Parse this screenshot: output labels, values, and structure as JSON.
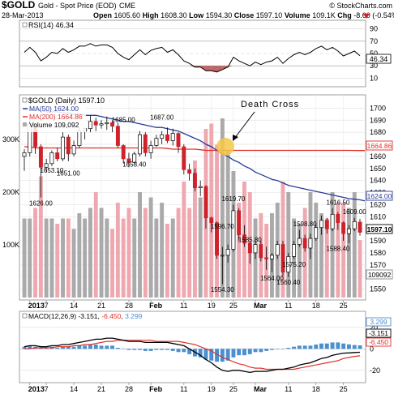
{
  "header": {
    "symbol": "$GOLD",
    "name": "Gold - Spot Price (EOD)",
    "exchange": "CME",
    "copyright": "© StockCharts.com",
    "date": "28-Mar-2013",
    "quote": {
      "open_label": "Open",
      "open": "1605.60",
      "high_label": "High",
      "high": "1608.30",
      "low_label": "Low",
      "low": "1594.30",
      "close_label": "Close",
      "close": "1597.10",
      "volume_label": "Volume",
      "volume": "109.1K",
      "chg_label": "Chg",
      "chg": "-8.60 (-0.54%)"
    }
  },
  "colors": {
    "up": "#ffffff",
    "down": "#d0202a",
    "ma50": "#2a3a9a",
    "ma200": "#e0302a",
    "volume_up": "#aaaaaa",
    "volume_down": "#f0a8b0",
    "histogram": "#4a90d0",
    "macd": "#000000",
    "signal": "#e0302a",
    "annotation": "#f5c84a"
  },
  "rsi_panel": {
    "legend": "RSI(14) 46.34",
    "value_box": "46.34",
    "levels": [
      "90",
      "70",
      "50",
      "30",
      "10"
    ]
  },
  "price_panel": {
    "legend_symbol": "$GOLD (Daily) 1597.10",
    "legend_ma50": "MA(50) 1624.00",
    "legend_ma200": "MA(200) 1664.86",
    "legend_volume": "Volume 109,092",
    "annotation_label": "Death Cross",
    "price_ticks": [
      "1700",
      "1690",
      "1680",
      "1670",
      "1660",
      "1650",
      "1640",
      "1630",
      "1620",
      "1610",
      "1600",
      "1590",
      "1580",
      "1570",
      "1560",
      "1550"
    ],
    "volume_ticks": [
      "300K",
      "200K",
      "100K"
    ],
    "boxes": {
      "ma200": "1664.86",
      "ma50": "1624.00",
      "close": "1597.10",
      "volume": "109092"
    },
    "point_labels": [
      "1626.00",
      "1653.10",
      "1685.00",
      "1687.00",
      "1651.00",
      "1658.40",
      "1619.70",
      "1596.70",
      "1585.80",
      "1554.30",
      "1564.00",
      "1560.40",
      "1598.80",
      "1575.20",
      "1616.50",
      "1609.00",
      "1588.40"
    ]
  },
  "macd_panel": {
    "legend_title": "MACD(12,26,9)",
    "legend_macd": "-3.151",
    "legend_signal": "-6.450",
    "legend_hist": "3.299",
    "boxes": {
      "hist": "3.299",
      "macd": "-3.151",
      "signal": "-6.450"
    },
    "ticks": [
      "20",
      "0",
      "-20"
    ]
  },
  "x_axis": {
    "labels": [
      "2013",
      "7",
      "14",
      "21",
      "28",
      "Feb",
      "11",
      "19",
      "25",
      "Mar",
      "11",
      "18",
      "25"
    ],
    "bold": [
      "2013",
      "Feb",
      "Mar"
    ]
  },
  "chart_data": {
    "type": "candlestick",
    "title": "$GOLD Gold - Spot Price (EOD) CME",
    "x": [
      "2012-12-31",
      "2013-01-02",
      "2013-01-03",
      "2013-01-04",
      "2013-01-07",
      "2013-01-08",
      "2013-01-09",
      "2013-01-10",
      "2013-01-11",
      "2013-01-14",
      "2013-01-15",
      "2013-01-16",
      "2013-01-17",
      "2013-01-18",
      "2013-01-21",
      "2013-01-22",
      "2013-01-23",
      "2013-01-24",
      "2013-01-25",
      "2013-01-28",
      "2013-01-29",
      "2013-01-30",
      "2013-01-31",
      "2013-02-01",
      "2013-02-04",
      "2013-02-05",
      "2013-02-06",
      "2013-02-07",
      "2013-02-08",
      "2013-02-11",
      "2013-02-12",
      "2013-02-13",
      "2013-02-14",
      "2013-02-15",
      "2013-02-19",
      "2013-02-20",
      "2013-02-21",
      "2013-02-22",
      "2013-02-25",
      "2013-02-26",
      "2013-02-27",
      "2013-02-28",
      "2013-03-01",
      "2013-03-04",
      "2013-03-05",
      "2013-03-06",
      "2013-03-07",
      "2013-03-08",
      "2013-03-11",
      "2013-03-12",
      "2013-03-13",
      "2013-03-14",
      "2013-03-15",
      "2013-03-18",
      "2013-03-19",
      "2013-03-20",
      "2013-03-21",
      "2013-03-22",
      "2013-03-25",
      "2013-03-26",
      "2013-03-27",
      "2013-03-28"
    ],
    "ohlc": [
      [
        1660,
        1666,
        1648,
        1663
      ],
      [
        1663,
        1692,
        1660,
        1687
      ],
      [
        1687,
        1688,
        1662,
        1668
      ],
      [
        1668,
        1670,
        1626,
        1651
      ],
      [
        1651,
        1658,
        1647,
        1654
      ],
      [
        1654,
        1665,
        1652,
        1663
      ],
      [
        1663,
        1667,
        1656,
        1658
      ],
      [
        1658,
        1680,
        1656,
        1676
      ],
      [
        1676,
        1678,
        1656,
        1662
      ],
      [
        1662,
        1673,
        1660,
        1669
      ],
      [
        1669,
        1684,
        1667,
        1681
      ],
      [
        1681,
        1684,
        1674,
        1683
      ],
      [
        1683,
        1694,
        1680,
        1689
      ],
      [
        1689,
        1692,
        1681,
        1686
      ],
      [
        1686,
        1690,
        1683,
        1687
      ],
      [
        1687,
        1693,
        1682,
        1688
      ],
      [
        1688,
        1690,
        1680,
        1685
      ],
      [
        1685,
        1688,
        1667,
        1669
      ],
      [
        1669,
        1670,
        1654,
        1658
      ],
      [
        1658,
        1663,
        1651,
        1655
      ],
      [
        1655,
        1664,
        1654,
        1662
      ],
      [
        1662,
        1681,
        1660,
        1678
      ],
      [
        1678,
        1680,
        1660,
        1663
      ],
      [
        1663,
        1673,
        1658,
        1669
      ],
      [
        1669,
        1678,
        1668,
        1675
      ],
      [
        1675,
        1681,
        1670,
        1678
      ],
      [
        1678,
        1684,
        1671,
        1673
      ],
      [
        1673,
        1683,
        1669,
        1679
      ],
      [
        1679,
        1680,
        1663,
        1668
      ],
      [
        1668,
        1670,
        1645,
        1649
      ],
      [
        1649,
        1654,
        1640,
        1646
      ],
      [
        1646,
        1650,
        1631,
        1634
      ],
      [
        1634,
        1640,
        1627,
        1635
      ],
      [
        1635,
        1636,
        1600,
        1609
      ],
      [
        1609,
        1610,
        1597,
        1605
      ],
      [
        1605,
        1606,
        1575,
        1578
      ],
      [
        1578,
        1585,
        1554,
        1578
      ],
      [
        1578,
        1587,
        1572,
        1583
      ],
      [
        1583,
        1620,
        1581,
        1615
      ],
      [
        1615,
        1617,
        1590,
        1595
      ],
      [
        1595,
        1603,
        1585,
        1588
      ],
      [
        1588,
        1590,
        1571,
        1580
      ],
      [
        1580,
        1590,
        1575,
        1587
      ],
      [
        1587,
        1590,
        1573,
        1576
      ],
      [
        1576,
        1585,
        1566,
        1575
      ],
      [
        1575,
        1580,
        1564,
        1578
      ],
      [
        1578,
        1590,
        1575,
        1587
      ],
      [
        1587,
        1590,
        1561,
        1564
      ],
      [
        1564,
        1580,
        1560,
        1577
      ],
      [
        1577,
        1590,
        1575,
        1587
      ],
      [
        1587,
        1599,
        1585,
        1592
      ],
      [
        1592,
        1595,
        1581,
        1584
      ],
      [
        1584,
        1596,
        1575,
        1592
      ],
      [
        1592,
        1604,
        1590,
        1601
      ],
      [
        1601,
        1611,
        1595,
        1607
      ],
      [
        1607,
        1609,
        1596,
        1600
      ],
      [
        1600,
        1617,
        1598,
        1612
      ],
      [
        1612,
        1614,
        1599,
        1605
      ],
      [
        1605,
        1606,
        1590,
        1596
      ],
      [
        1596,
        1603,
        1588,
        1600
      ],
      [
        1600,
        1609,
        1598,
        1606
      ],
      [
        1605.6,
        1608.3,
        1594.3,
        1597.1
      ]
    ],
    "ma50": [
      1699,
      1699,
      1698,
      1698,
      1697,
      1697,
      1697,
      1696,
      1696,
      1695,
      1695,
      1694,
      1694,
      1694,
      1693,
      1692,
      1691,
      1690,
      1689,
      1689,
      1688,
      1687,
      1686,
      1685,
      1684,
      1684,
      1683,
      1682,
      1681,
      1679,
      1677,
      1675,
      1673,
      1670,
      1668,
      1665,
      1662,
      1660,
      1657,
      1655,
      1652,
      1650,
      1647,
      1645,
      1643,
      1641,
      1640,
      1638,
      1636,
      1635,
      1634,
      1633,
      1632,
      1631,
      1630,
      1629,
      1628,
      1627,
      1626,
      1625,
      1624.5,
      1624.0
    ],
    "ma200": [
      1668,
      1668,
      1667,
      1667,
      1667,
      1667,
      1667,
      1667,
      1667,
      1667,
      1667,
      1667,
      1667,
      1667,
      1667,
      1667,
      1667,
      1667,
      1667,
      1667,
      1667,
      1667,
      1667,
      1667,
      1667,
      1667,
      1666.5,
      1666,
      1666,
      1666,
      1666,
      1666,
      1665.5,
      1665,
      1665,
      1665,
      1665,
      1665,
      1665,
      1665,
      1665,
      1665,
      1665,
      1665,
      1665,
      1665,
      1665,
      1665,
      1665,
      1665,
      1665,
      1665,
      1665,
      1665,
      1665,
      1665,
      1665,
      1665,
      1665,
      1665,
      1664.9,
      1664.86
    ],
    "volume_k": [
      150,
      150,
      170,
      230,
      150,
      150,
      140,
      150,
      150,
      130,
      160,
      150,
      170,
      200,
      170,
      150,
      130,
      180,
      150,
      170,
      150,
      200,
      170,
      190,
      150,
      180,
      140,
      150,
      170,
      220,
      170,
      260,
      190,
      320,
      330,
      290,
      340,
      280,
      240,
      180,
      220,
      200,
      150,
      160,
      140,
      160,
      180,
      220,
      200,
      150,
      140,
      170,
      200,
      180,
      160,
      150,
      200,
      180,
      180,
      170,
      200,
      109
    ],
    "rsi": [
      52,
      60,
      52,
      38,
      44,
      52,
      50,
      58,
      52,
      56,
      62,
      62,
      66,
      62,
      64,
      64,
      60,
      50,
      44,
      40,
      48,
      56,
      48,
      55,
      58,
      60,
      52,
      56,
      48,
      38,
      34,
      28,
      28,
      22,
      22,
      20,
      24,
      28,
      44,
      38,
      34,
      30,
      36,
      32,
      36,
      38,
      44,
      34,
      42,
      48,
      52,
      48,
      52,
      58,
      62,
      56,
      60,
      54,
      46,
      50,
      54,
      46.34
    ],
    "macd": [
      2,
      3,
      3,
      2,
      2,
      3,
      3,
      4,
      4,
      5,
      6,
      7,
      8,
      9,
      9,
      10,
      10,
      9,
      8,
      7,
      7,
      7,
      6,
      6,
      6,
      6,
      6,
      5,
      4,
      3,
      0,
      -3,
      -6,
      -10,
      -13,
      -17,
      -20,
      -21,
      -20,
      -20,
      -21,
      -22,
      -21,
      -21,
      -21,
      -20,
      -19,
      -19,
      -18,
      -17,
      -15,
      -14,
      -13,
      -11,
      -9,
      -8,
      -6,
      -5,
      -4,
      -3.8,
      -3.4,
      -3.151
    ],
    "signal": [
      0,
      0,
      1,
      1,
      1,
      1,
      2,
      2,
      2,
      3,
      3,
      4,
      4,
      5,
      6,
      7,
      7,
      8,
      8,
      8,
      8,
      8,
      8,
      8,
      7,
      7,
      7,
      7,
      7,
      6,
      5,
      4,
      2,
      0,
      -2,
      -5,
      -8,
      -10,
      -12,
      -14,
      -15,
      -17,
      -18,
      -18,
      -19,
      -19,
      -19,
      -19,
      -19,
      -19,
      -18,
      -17,
      -16,
      -15,
      -14,
      -13,
      -12,
      -11,
      -9,
      -8,
      -7,
      -6.45
    ],
    "histogram": [
      2,
      3,
      2,
      1,
      1,
      2,
      1,
      2,
      2,
      2,
      3,
      3,
      4,
      4,
      3,
      3,
      3,
      1,
      0,
      -1,
      -1,
      -1,
      -2,
      -2,
      -1,
      -1,
      -1,
      -2,
      -3,
      -3,
      -5,
      -7,
      -8,
      -10,
      -11,
      -12,
      -12,
      -11,
      -8,
      -6,
      -6,
      -5,
      -3,
      -3,
      -2,
      -1,
      0,
      0,
      1,
      2,
      3,
      3,
      3,
      4,
      5,
      5,
      6,
      6,
      5,
      4.2,
      3.6,
      3.299
    ],
    "price_range": [
      1543,
      1709
    ],
    "rsi_range": [
      0,
      100
    ],
    "macd_range": [
      -30,
      32
    ],
    "volume_range_k": [
      0,
      380
    ]
  }
}
